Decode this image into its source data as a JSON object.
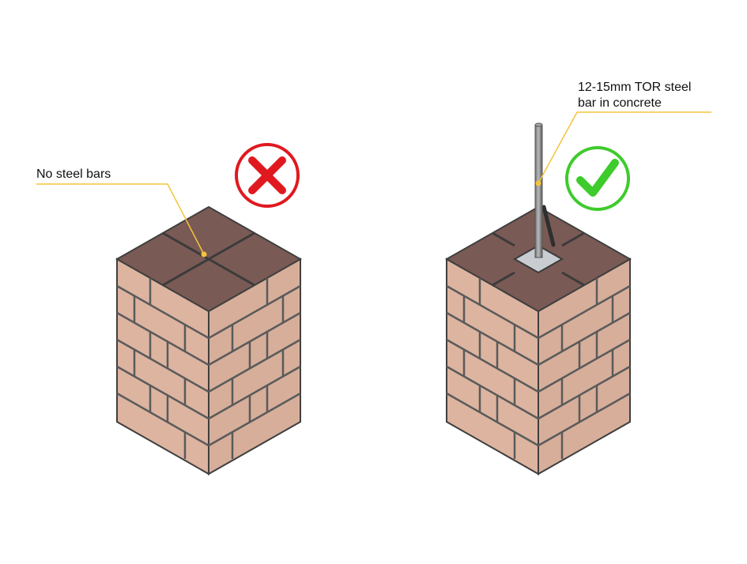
{
  "left_panel": {
    "callout": "No steel bars",
    "verdict_icon": "cross-icon",
    "verdict_color": "#e0191f"
  },
  "right_panel": {
    "callout_line1": "12-15mm TOR steel",
    "callout_line2": "bar in concrete",
    "verdict_icon": "check-icon",
    "verdict_color": "#3ecb2c"
  },
  "colors": {
    "callout_line": "#f5c33b",
    "top_brick": "#7a5a55",
    "side_brick": "#dcb4a0",
    "mortar": "#4a4a4a",
    "concrete": "#c9ccd0",
    "steel_bar": "#8e9091"
  }
}
